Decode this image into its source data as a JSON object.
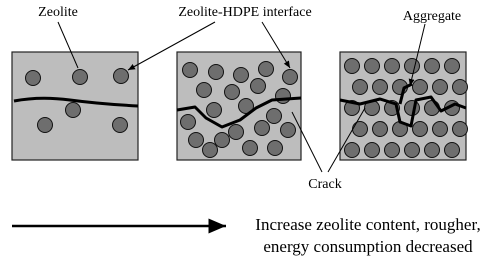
{
  "labels": {
    "zeolite": "Zeolite",
    "interface": "Zeolite-HDPE interface",
    "aggregate": "Aggregate",
    "crack": "Crack"
  },
  "caption": [
    "Increase zeolite content, rougher,",
    "energy consumption decreased"
  ]
}
